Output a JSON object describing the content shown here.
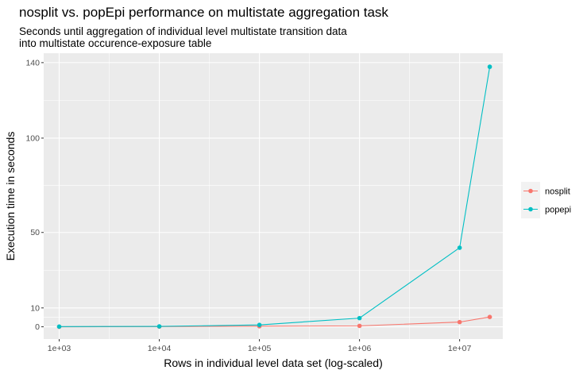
{
  "chart_data": {
    "type": "line",
    "title": "nosplit vs. popEpi performance on multistate aggregation task",
    "subtitle": [
      "Seconds until aggregation of individual level multistate transition data",
      "into multistate occurence-exposure table"
    ],
    "xlabel": "Rows in individual level data set (log-scaled)",
    "ylabel": "Execution time in seconds",
    "x_scale": "log10",
    "x_ticks": [
      1000,
      10000,
      100000,
      1000000,
      10000000
    ],
    "x_tick_labels": [
      "1e+03",
      "1e+04",
      "1e+05",
      "1e+06",
      "1e+07"
    ],
    "y_ticks": [
      0,
      10,
      50,
      100,
      140
    ],
    "xlim": [
      700,
      27000000
    ],
    "ylim": [
      -6.5,
      145
    ],
    "grid": true,
    "legend_position": "right",
    "series": [
      {
        "name": "nosplit",
        "color": "#F8766D",
        "x": [
          1000,
          10000,
          100000,
          1000000,
          10000000,
          20000000
        ],
        "y": [
          0.0,
          0.1,
          0.3,
          0.5,
          2.5,
          5.2
        ]
      },
      {
        "name": "popepi",
        "color": "#00BFC4",
        "x": [
          1000,
          10000,
          100000,
          1000000,
          10000000,
          20000000
        ],
        "y": [
          0.1,
          0.2,
          1.0,
          4.6,
          41.9,
          137.8
        ]
      }
    ]
  }
}
